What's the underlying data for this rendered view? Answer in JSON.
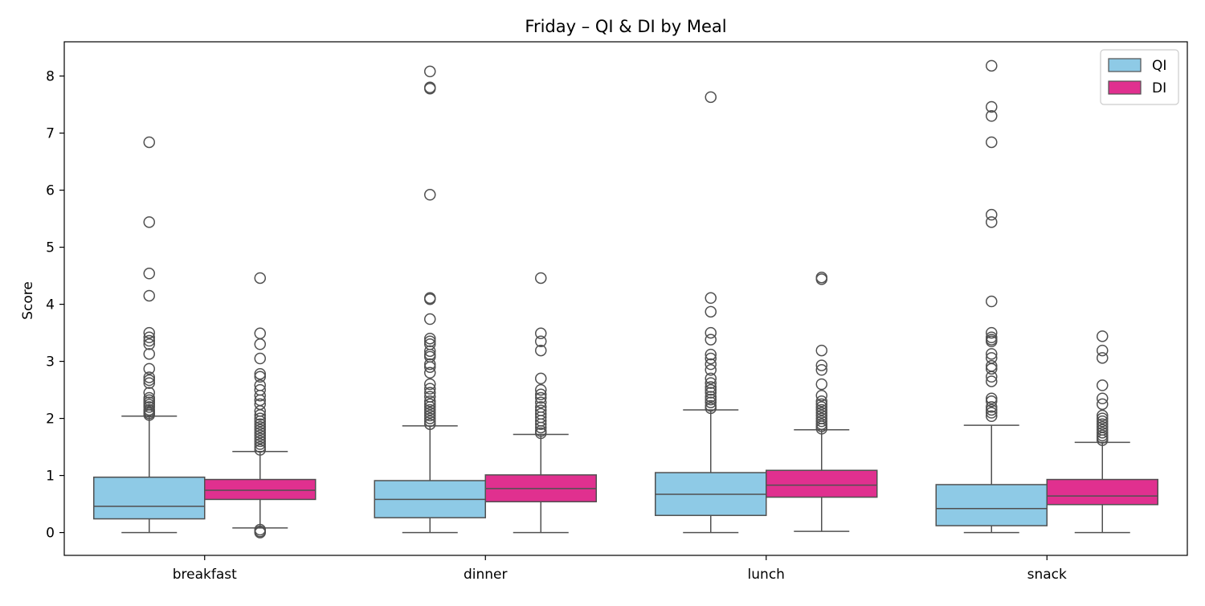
{
  "chart_data": {
    "type": "box",
    "title": "Friday – QI & DI by Meal",
    "xlabel": "",
    "ylabel": "Score",
    "ylim": [
      -0.4,
      8.6
    ],
    "yticks": [
      0,
      1,
      2,
      3,
      4,
      5,
      6,
      7,
      8
    ],
    "grid": false,
    "legend_position": "top-right",
    "categories": [
      "breakfast",
      "dinner",
      "lunch",
      "snack"
    ],
    "series": [
      {
        "name": "QI",
        "color": "#8ecae6",
        "boxes": [
          {
            "whisker_low": 0.0,
            "q1": 0.24,
            "median": 0.46,
            "q3": 0.97,
            "whisker_high": 2.04,
            "outliers": [
              2.06,
              2.09,
              2.12,
              2.15,
              2.2,
              2.24,
              2.28,
              2.32,
              2.36,
              2.45,
              2.62,
              2.67,
              2.72,
              2.87,
              3.13,
              3.3,
              3.36,
              3.42,
              3.5,
              4.15,
              4.54,
              5.44,
              6.84
            ]
          },
          {
            "whisker_low": 0.0,
            "q1": 0.26,
            "median": 0.58,
            "q3": 0.91,
            "whisker_high": 1.87,
            "outliers": [
              1.9,
              1.95,
              2.0,
              2.05,
              2.1,
              2.15,
              2.2,
              2.25,
              2.3,
              2.38,
              2.45,
              2.52,
              2.6,
              2.8,
              2.9,
              2.95,
              3.08,
              3.12,
              3.18,
              3.3,
              3.35,
              3.4,
              3.74,
              4.09,
              4.11,
              5.92,
              7.78,
              7.8,
              8.08
            ]
          },
          {
            "whisker_low": 0.0,
            "q1": 0.3,
            "median": 0.67,
            "q3": 1.05,
            "whisker_high": 2.15,
            "outliers": [
              2.18,
              2.22,
              2.28,
              2.33,
              2.38,
              2.45,
              2.5,
              2.55,
              2.62,
              2.7,
              2.85,
              2.95,
              3.05,
              3.12,
              3.38,
              3.5,
              3.87,
              4.11,
              7.63
            ]
          },
          {
            "whisker_low": 0.0,
            "q1": 0.12,
            "median": 0.42,
            "q3": 0.84,
            "whisker_high": 1.88,
            "outliers": [
              2.04,
              2.1,
              2.15,
              2.2,
              2.3,
              2.35,
              2.65,
              2.73,
              2.87,
              2.92,
              3.06,
              3.13,
              3.35,
              3.38,
              3.42,
              3.5,
              4.05,
              5.44,
              5.57,
              6.84,
              7.3,
              7.46,
              8.18
            ]
          }
        ]
      },
      {
        "name": "DI",
        "color": "#e0308f",
        "boxes": [
          {
            "whisker_low": 0.08,
            "q1": 0.58,
            "median": 0.74,
            "q3": 0.93,
            "whisker_high": 1.42,
            "outliers": [
              0.0,
              0.02,
              0.05,
              1.45,
              1.5,
              1.55,
              1.6,
              1.65,
              1.7,
              1.75,
              1.8,
              1.85,
              1.9,
              1.95,
              2.0,
              2.06,
              2.13,
              2.25,
              2.32,
              2.4,
              2.5,
              2.58,
              2.73,
              2.78,
              3.05,
              3.3,
              3.49,
              4.46
            ]
          },
          {
            "whisker_low": 0.0,
            "q1": 0.54,
            "median": 0.77,
            "q3": 1.01,
            "whisker_high": 1.72,
            "outliers": [
              1.74,
              1.78,
              1.84,
              1.9,
              1.96,
              2.02,
              2.08,
              2.14,
              2.2,
              2.28,
              2.36,
              2.42,
              2.5,
              2.7,
              3.19,
              3.35,
              3.49,
              4.46
            ]
          },
          {
            "whisker_low": 0.02,
            "q1": 0.62,
            "median": 0.83,
            "q3": 1.09,
            "whisker_high": 1.8,
            "outliers": [
              1.82,
              1.86,
              1.9,
              1.95,
              2.0,
              2.05,
              2.1,
              2.15,
              2.2,
              2.25,
              2.3,
              2.4,
              2.6,
              2.85,
              2.93,
              3.19,
              4.44,
              4.47
            ]
          },
          {
            "whisker_low": 0.0,
            "q1": 0.49,
            "median": 0.64,
            "q3": 0.93,
            "whisker_high": 1.58,
            "outliers": [
              1.62,
              1.66,
              1.7,
              1.75,
              1.8,
              1.85,
              1.9,
              1.95,
              2.0,
              2.05,
              2.25,
              2.35,
              2.58,
              3.06,
              3.19,
              3.44
            ]
          }
        ]
      }
    ]
  }
}
